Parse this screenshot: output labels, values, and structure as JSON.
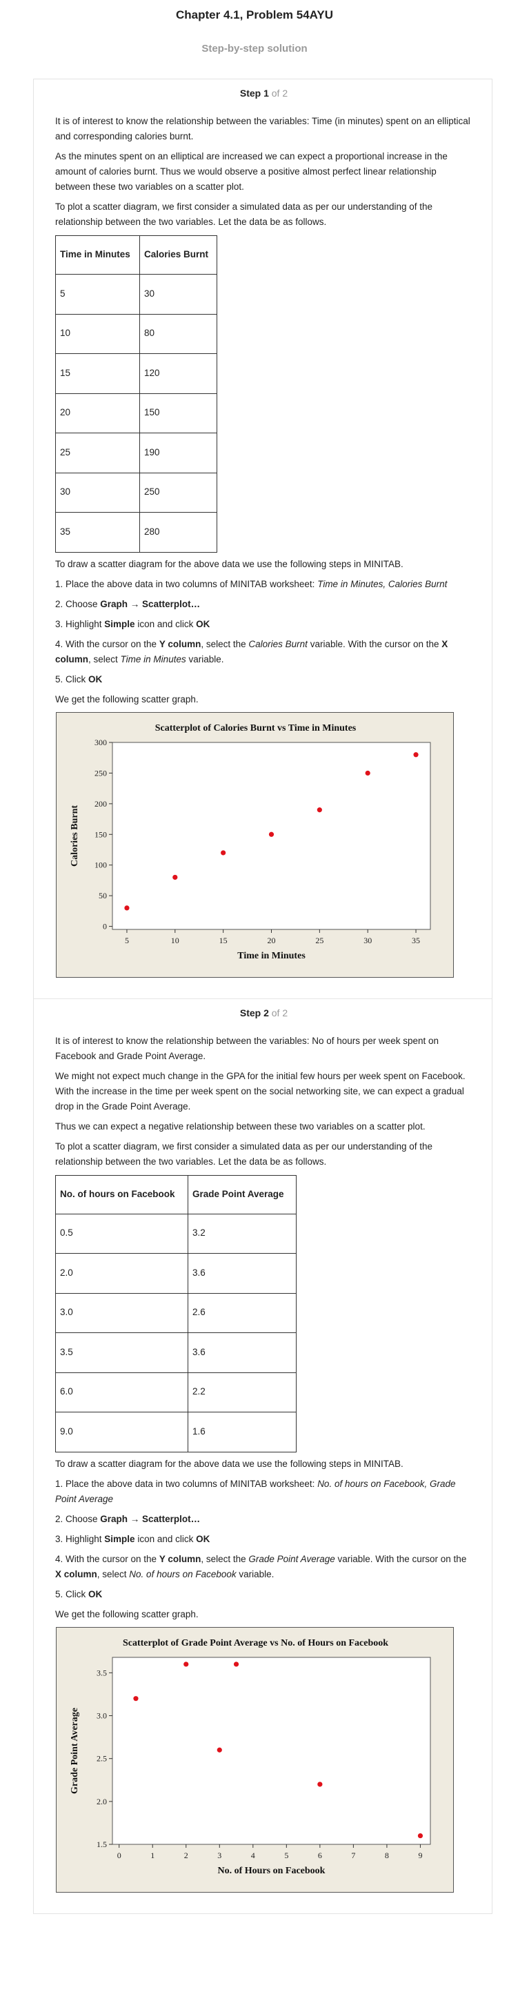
{
  "chapter_title": "Chapter 4.1, Problem 54AYU",
  "subtitle": "Step-by-step solution",
  "steps": [
    {
      "label": "Step 1",
      "of": "of 2",
      "para1": "It is of interest to know the relationship between the variables: Time (in minutes) spent on an elliptical and corresponding calories burnt.",
      "para2": "As the minutes spent on an elliptical are increased we can expect a proportional increase in the amount of calories burnt. Thus we would observe a positive almost perfect linear relationship between these two variables on a scatter plot.",
      "para3": "To plot a scatter diagram, we first consider a simulated data as per our understanding of the relationship between the two variables. Let the data be as follows.",
      "table": {
        "headers": [
          "Time in Minutes",
          "Calories Burnt"
        ],
        "rows": [
          [
            "5",
            "30"
          ],
          [
            "10",
            "80"
          ],
          [
            "15",
            "120"
          ],
          [
            "20",
            "150"
          ],
          [
            "25",
            "190"
          ],
          [
            "30",
            "250"
          ],
          [
            "35",
            "280"
          ]
        ]
      },
      "intro": "To draw a scatter diagram for the above data we use the following steps in MINITAB.",
      "s1_prefix": "1. Place the above data in two columns of MINITAB worksheet: ",
      "s1_italic": "Time in Minutes, Calories Burnt",
      "s2_prefix": "2. Choose ",
      "s2_bold": "Graph → Scatterplot…",
      "s3_prefix": "3. Highlight ",
      "s3_bold1": "Simple",
      "s3_mid": " icon and click ",
      "s3_bold2": "OK",
      "s4_a": "4. With the cursor on the ",
      "s4_b": "Y column",
      "s4_c": ", select the ",
      "s4_d": "Calories Burnt",
      "s4_e": " variable. With the cursor on the ",
      "s4_f": "X column",
      "s4_g": ", select ",
      "s4_h": "Time in Minutes",
      "s4_i": " variable.",
      "s5_prefix": "5. Click ",
      "s5_bold": "OK",
      "outro": "We get the following scatter graph."
    },
    {
      "label": "Step 2",
      "of": "of 2",
      "para1": "It is of interest to know the relationship between the variables: No of hours per week spent on Facebook and Grade Point Average.",
      "para2": "We might not expect much change in the GPA for the initial few hours per week spent on Facebook. With the increase in the time per week spent on the social networking site, we can expect a gradual drop in the Grade Point Average.",
      "para3": "Thus we can expect a negative relationship between these two variables on a scatter plot.",
      "para4": "To plot a scatter diagram, we first consider a simulated data as per our understanding of the relationship between the two variables. Let the data be as follows.",
      "table": {
        "headers": [
          "No. of hours on Facebook",
          "Grade Point Average"
        ],
        "rows": [
          [
            "0.5",
            "3.2"
          ],
          [
            "2.0",
            "3.6"
          ],
          [
            "3.0",
            "2.6"
          ],
          [
            "3.5",
            "3.6"
          ],
          [
            "6.0",
            "2.2"
          ],
          [
            "9.0",
            "1.6"
          ]
        ]
      },
      "intro": "To draw a scatter diagram for the above data we use the following steps in MINITAB.",
      "s1_prefix": "1. Place the above data in two columns of MINITAB worksheet: ",
      "s1_italic": "No. of hours on Facebook, Grade Point Average",
      "s2_prefix": "2. Choose ",
      "s2_bold": "Graph → Scatterplot…",
      "s3_prefix": "3. Highlight ",
      "s3_bold1": "Simple",
      "s3_mid": " icon and click ",
      "s3_bold2": "OK",
      "s4_a": "4. With the cursor on the ",
      "s4_b": "Y column",
      "s4_c": ", select the ",
      "s4_d": "Grade Point Average",
      "s4_e": " variable. With the cursor on the ",
      "s4_f": "X column",
      "s4_g": ", select ",
      "s4_h": "No. of hours on Facebook",
      "s4_i": " variable.",
      "s5_prefix": "5. Click ",
      "s5_bold": "OK",
      "outro": "We get the following scatter graph."
    }
  ],
  "chart_data": [
    {
      "type": "scatter",
      "title": "Scatterplot of Calories Burnt vs Time in Minutes",
      "xlabel": "Time in Minutes",
      "ylabel": "Calories Burnt",
      "x": [
        5,
        10,
        15,
        20,
        25,
        30,
        35
      ],
      "y": [
        30,
        80,
        120,
        150,
        190,
        250,
        280
      ],
      "xlim": [
        3.5,
        36.5
      ],
      "ylim": [
        -5,
        300
      ],
      "xticks": [
        5,
        10,
        15,
        20,
        25,
        30,
        35
      ],
      "yticks": [
        0,
        50,
        100,
        150,
        200,
        250,
        300
      ],
      "xtick_labels": [
        "5",
        "10",
        "15",
        "20",
        "25",
        "30",
        "35"
      ],
      "ytick_labels": [
        "0",
        "50",
        "100",
        "150",
        "200",
        "250",
        "300"
      ],
      "grid": false,
      "point_color": "#e0121b",
      "background_color": "#efebe0"
    },
    {
      "type": "scatter",
      "title": "Scatterplot of Grade Point Average vs No. of Hours on Facebook",
      "xlabel": "No. of Hours on Facebook",
      "ylabel": "Grade Point Average",
      "x": [
        0.5,
        2.0,
        3.0,
        3.5,
        6.0,
        9.0
      ],
      "y": [
        3.2,
        3.6,
        2.6,
        3.6,
        2.2,
        1.6
      ],
      "xlim": [
        -0.2,
        9.3
      ],
      "ylim": [
        1.5,
        3.68
      ],
      "xticks": [
        0,
        1,
        2,
        3,
        4,
        5,
        6,
        7,
        8,
        9
      ],
      "yticks": [
        1.5,
        2.0,
        2.5,
        3.0,
        3.5
      ],
      "xtick_labels": [
        "0",
        "1",
        "2",
        "3",
        "4",
        "5",
        "6",
        "7",
        "8",
        "9"
      ],
      "ytick_labels": [
        "1.5",
        "2.0",
        "2.5",
        "3.0",
        "3.5"
      ],
      "grid": false,
      "point_color": "#e0121b",
      "background_color": "#efebe0"
    }
  ]
}
